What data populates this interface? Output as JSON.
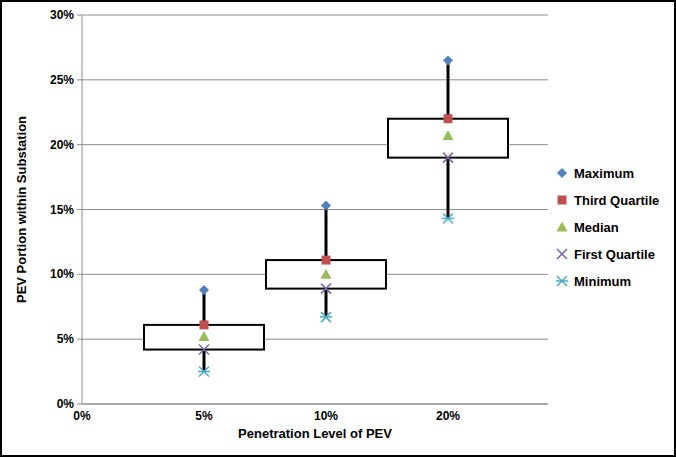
{
  "chart_data": {
    "type": "box",
    "x_label": "Penetration Level of PEV",
    "y_label": "PEV Portion within Substation",
    "categories": [
      "0%",
      "5%",
      "10%",
      "20%"
    ],
    "series": [
      {
        "name": "Maximum",
        "color": "#4f81bd",
        "marker": "diamond",
        "values": [
          null,
          8.8,
          15.3,
          26.5
        ]
      },
      {
        "name": "Third Quartile",
        "color": "#c0504d",
        "marker": "square",
        "values": [
          null,
          6.1,
          11.1,
          22.0
        ]
      },
      {
        "name": "Median",
        "color": "#9bbb59",
        "marker": "triangle",
        "values": [
          null,
          5.2,
          10.0,
          20.7
        ]
      },
      {
        "name": "First Quartile",
        "color": "#8064a2",
        "marker": "x",
        "values": [
          null,
          4.2,
          8.9,
          19.0
        ]
      },
      {
        "name": "Minimum",
        "color": "#4bacc6",
        "marker": "star",
        "values": [
          null,
          2.5,
          6.7,
          14.3
        ]
      }
    ],
    "ylim": [
      0,
      30
    ],
    "yticks": [
      {
        "value": 0,
        "label": "0%"
      },
      {
        "value": 5,
        "label": "5%"
      },
      {
        "value": 10,
        "label": "10%"
      },
      {
        "value": 15,
        "label": "15%"
      },
      {
        "value": 20,
        "label": "20%"
      },
      {
        "value": 25,
        "label": "25%"
      },
      {
        "value": 30,
        "label": "30%"
      }
    ],
    "grid": true,
    "legend": "right"
  }
}
